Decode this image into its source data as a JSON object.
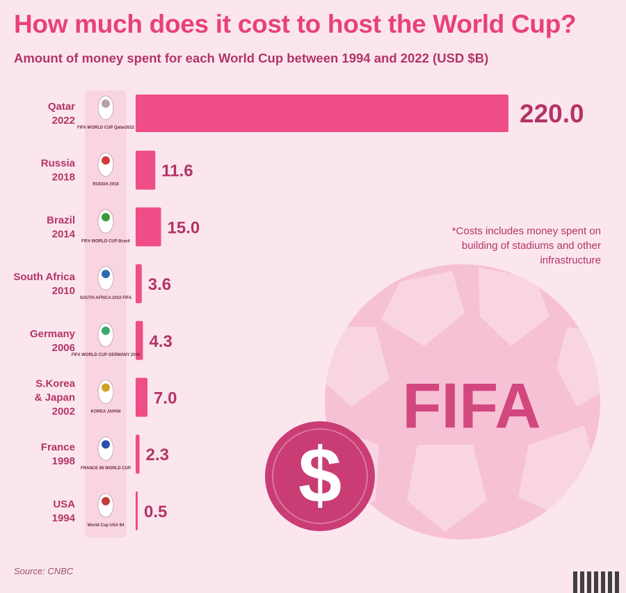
{
  "header": {
    "title": "How much does it cost to host the World Cup?",
    "subtitle": "Amount of money spent for each World Cup between 1994 and 2022 (USD $B)"
  },
  "note": "*Costs includes money spent on building of stadiums and other infrastructure",
  "source": "Source: CNBC",
  "ball": {
    "label": "FIFA",
    "coin_symbol": "$"
  },
  "colors": {
    "background": "#fbe6ee",
    "bar": "#ef4d87",
    "value_text": "#b23466",
    "ball": "#f6c1d5",
    "fifa_text": "#d2477e",
    "coin": "#c93c74"
  },
  "chart_data": {
    "type": "bar",
    "orientation": "horizontal",
    "title": "How much does it cost to host the World Cup?",
    "subtitle": "Amount of money spent for each World Cup between 1994 and 2022 (USD $B)",
    "categories": [
      [
        "Qatar",
        "2022"
      ],
      [
        "Russia",
        "2018"
      ],
      [
        "Brazil",
        "2014"
      ],
      [
        "South Africa",
        "2010"
      ],
      [
        "Germany",
        "2006"
      ],
      [
        "S.Korea",
        "& Japan",
        "2002"
      ],
      [
        "France",
        "1998"
      ],
      [
        "USA",
        "1994"
      ]
    ],
    "values": [
      220.0,
      11.6,
      15.0,
      3.6,
      4.3,
      7.0,
      2.3,
      0.5
    ],
    "value_labels": [
      "220.0",
      "11.6",
      "15.0",
      "3.6",
      "4.3",
      "7.0",
      "2.3",
      "0.5"
    ],
    "logo_icons": [
      "qatar-2022-emblem-icon",
      "russia-2018-emblem-icon",
      "brazil-2014-emblem-icon",
      "south-africa-2010-emblem-icon",
      "germany-2006-emblem-icon",
      "korea-japan-2002-emblem-icon",
      "france-1998-emblem-icon",
      "usa-1994-emblem-icon"
    ],
    "logo_texts": [
      "FIFA WORLD CUP Qatar2022",
      "RUSSIA 2018",
      "FIFA WORLD CUP Brasil",
      "SOUTH AFRICA 2010 FIFA",
      "FIFA WORLD CUP GERMANY 2006",
      "KOREA JAPAN",
      "FRANCE 98 WORLD CUP",
      "World Cup USA 94"
    ],
    "unit": "USD $B",
    "xlim": [
      0,
      220
    ],
    "grid": false,
    "legend": "none"
  }
}
